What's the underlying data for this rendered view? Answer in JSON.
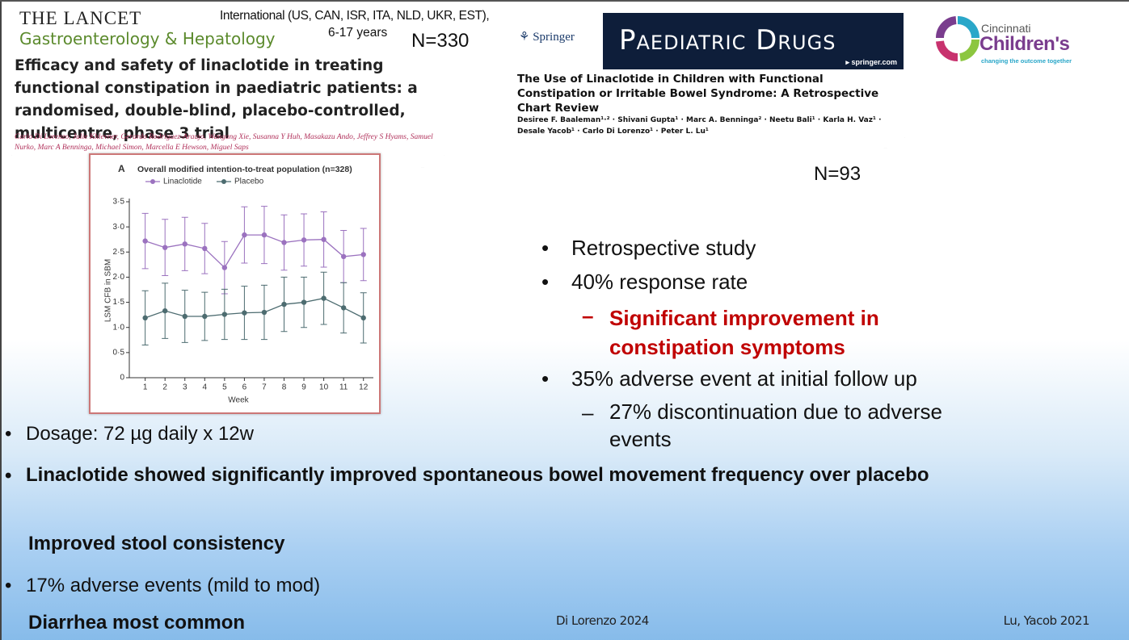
{
  "lancet": {
    "journal": "THE LANCET",
    "subjournal": "Gastroenterology & Hepatology",
    "title": "Efficacy and safety of linaclotide in treating functional constipation in paediatric patients: a randomised, double-blind, placebo-controlled, multicentre, phase 3 trial",
    "authors": "Carlo Di Lorenzo, Julie Khlevner, Gerardo Rodriguez-Araujo, Wangang Xie, Susanna Y Huh, Masakazu Ando, Jeffrey S Hyams, Samuel Nurko, Marc A Benninga, Michael Simon, Marcella E Hewson, Miguel Saps"
  },
  "lancet_study": {
    "population": "International (US, CAN, ISR, ITA, NLD, UKR, EST),",
    "ages": "6-17 years",
    "n": "N=330"
  },
  "chart_data": {
    "type": "line",
    "panel": "A",
    "title": "Overall modified intention-to-treat population (n=328)",
    "x_label": "Week",
    "y_label": "LSM CFB in SBM",
    "x": [
      1,
      2,
      3,
      4,
      5,
      6,
      7,
      8,
      9,
      10,
      11,
      12
    ],
    "series": [
      {
        "name": "Linaclotide",
        "color": "#9b72bf",
        "values": [
          2.72,
          2.59,
          2.66,
          2.57,
          2.19,
          2.84,
          2.84,
          2.69,
          2.74,
          2.75,
          2.41,
          2.45
        ],
        "errors": [
          0.55,
          0.56,
          0.53,
          0.5,
          0.52,
          0.56,
          0.57,
          0.55,
          0.52,
          0.55,
          0.52,
          0.52
        ]
      },
      {
        "name": "Placebo",
        "color": "#4d6c70",
        "values": [
          1.19,
          1.33,
          1.22,
          1.22,
          1.26,
          1.29,
          1.3,
          1.46,
          1.5,
          1.58,
          1.39,
          1.19
        ],
        "errors": [
          0.54,
          0.55,
          0.52,
          0.48,
          0.5,
          0.53,
          0.54,
          0.54,
          0.5,
          0.52,
          0.5,
          0.5
        ]
      }
    ],
    "xlim": [
      0.2,
      12.5
    ],
    "xticks": [
      1,
      2,
      3,
      4,
      5,
      6,
      7,
      8,
      9,
      10,
      11,
      12
    ],
    "ylim": [
      0,
      3.5
    ],
    "yticks": [
      0,
      {
        "value": 0.5,
        "label": "0·5"
      },
      {
        "value": 1,
        "label": "1·0"
      },
      {
        "value": 1.5,
        "label": "1·5"
      },
      {
        "value": 2,
        "label": "2·0"
      },
      {
        "value": 2.5,
        "label": "2·5"
      },
      {
        "value": 3,
        "label": "3·0"
      },
      {
        "value": 3.5,
        "label": "3·5"
      }
    ],
    "legend": "top-left"
  },
  "springer": {
    "publisher": "Springer",
    "journal": "Paediatric Drugs",
    "url": "▸ springer.com",
    "title": "The Use of Linaclotide in Children with Functional Constipation or Irritable Bowel Syndrome: A Retrospective Chart Review",
    "authors": "Desiree F. Baaleman¹·² · Shivani Gupta¹ · Marc A. Benninga² · Neetu Bali¹ · Karla H. Vaz¹ · Desale Yacob¹ · Carlo Di Lorenzo¹ · Peter L. Lu¹"
  },
  "springer_n": "N=93",
  "logo": {
    "top": "Cincinnati",
    "name": "Children's",
    "tagline": "changing the outcome together"
  },
  "right_bullets": [
    "Retrospective study",
    "40% response rate",
    "Significant improvement in constipation symptoms",
    "35% adverse event at initial follow up",
    "27% discontinuation due to adverse events"
  ],
  "left_bullets": [
    "Dosage: 72 µg daily x 12w",
    "Linaclotide showed significantly improved spontaneous bowel movement frequency over placebo",
    "Improved stool consistency",
    "17% adverse events (mild to mod)",
    "Diarrhea most common"
  ],
  "citations": [
    "Di Lorenzo 2024",
    "Lu, Yacob 2021"
  ]
}
